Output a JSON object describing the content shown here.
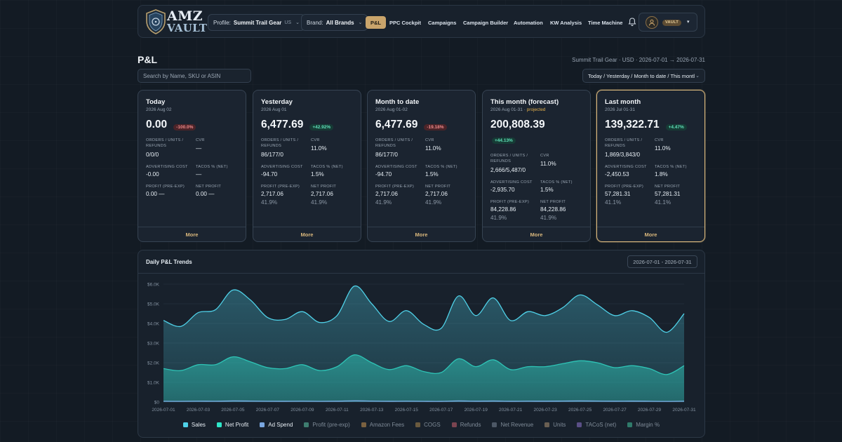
{
  "header": {
    "logo": {
      "line1": "AMZ",
      "line2": "VAULT"
    },
    "profile": {
      "label": "Profile:",
      "value": "Summit Trail Gear",
      "marketplace": "US"
    },
    "brand": {
      "label": "Brand:",
      "value": "All Brands"
    },
    "nav": [
      "P&L",
      "PPC Cockpit",
      "Campaigns",
      "Campaign Builder",
      "Automation",
      "KW Analysis",
      "Time Machine"
    ],
    "active_nav": "P&L",
    "user_badge": "VAULT"
  },
  "page": {
    "title": "P&L",
    "meta": "Summit Trail Gear · USD · 2026-07-01 → 2026-07-31",
    "search_placeholder": "Search by Name, SKU or ASIN",
    "range_select": "Today / Yesterday / Month to date / This montl"
  },
  "labels": {
    "orders": "ORDERS / UNITS / REFUNDS",
    "cvr": "CVR",
    "ad_cost": "ADVERTISING COST",
    "tacos": "TACOS % (NET)",
    "profit": "PROFIT (PRE-EXP)",
    "net_profit": "NET PROFIT",
    "more": "More"
  },
  "cards": [
    {
      "title": "Today",
      "date": "2026 Aug 02",
      "projected": "",
      "amount": "0.00",
      "delta": "-100.0%",
      "delta_dir": "neg",
      "orders": "0/0/0",
      "cvr": "—",
      "ad_cost": "-0.00",
      "tacos": "—",
      "profit": "0.00 —",
      "profit_pct": "",
      "net_profit": "0.00 —",
      "net_profit_pct": "",
      "highlight": false
    },
    {
      "title": "Yesterday",
      "date": "2026 Aug 01",
      "projected": "",
      "amount": "6,477.69",
      "delta": "+42.92%",
      "delta_dir": "pos",
      "orders": "86/177/0",
      "cvr": "11.0%",
      "ad_cost": "-94.70",
      "tacos": "1.5%",
      "profit": "2,717.06",
      "profit_pct": "41.9%",
      "net_profit": "2,717.06",
      "net_profit_pct": "41.9%",
      "highlight": false
    },
    {
      "title": "Month to date",
      "date": "2026 Aug 01-02",
      "projected": "",
      "amount": "6,477.69",
      "delta": "-19.18%",
      "delta_dir": "neg",
      "orders": "86/177/0",
      "cvr": "11.0%",
      "ad_cost": "-94.70",
      "tacos": "1.5%",
      "profit": "2,717.06",
      "profit_pct": "41.9%",
      "net_profit": "2,717.06",
      "net_profit_pct": "41.9%",
      "highlight": false
    },
    {
      "title": "This month (forecast)",
      "date": "2026 Aug 01-31 · ",
      "projected": "projected",
      "amount": "200,808.39",
      "delta": "+44.13%",
      "delta_dir": "pos",
      "orders": "2,666/5,487/0",
      "cvr": "11.0%",
      "ad_cost": "-2,935.70",
      "tacos": "1.5%",
      "profit": "84,228.86",
      "profit_pct": "41.9%",
      "net_profit": "84,228.86",
      "net_profit_pct": "41.9%",
      "highlight": false
    },
    {
      "title": "Last month",
      "date": "2026 Jul 01-31",
      "projected": "",
      "amount": "139,322.71",
      "delta": "+4.47%",
      "delta_dir": "pos",
      "orders": "1,869/3,843/0",
      "cvr": "11.0%",
      "ad_cost": "-2,450.53",
      "tacos": "1.8%",
      "profit": "57,281.31",
      "profit_pct": "41.1%",
      "net_profit": "57,281.31",
      "net_profit_pct": "41.1%",
      "highlight": true
    }
  ],
  "chart_panel": {
    "title": "Daily P&L Trends",
    "range": "2026-07-01 - 2026-07-31"
  },
  "chart_data": {
    "type": "area",
    "title": "Daily P&L Trends",
    "xlabel": "",
    "ylabel": "",
    "ylim": [
      0,
      6000
    ],
    "yticks": [
      "$0",
      "$1.0K",
      "$2.0K",
      "$3.0K",
      "$4.0K",
      "$5.0K",
      "$6.0K"
    ],
    "x": [
      "2026-07-01",
      "2026-07-02",
      "2026-07-03",
      "2026-07-04",
      "2026-07-05",
      "2026-07-06",
      "2026-07-07",
      "2026-07-08",
      "2026-07-09",
      "2026-07-10",
      "2026-07-11",
      "2026-07-12",
      "2026-07-13",
      "2026-07-14",
      "2026-07-15",
      "2026-07-16",
      "2026-07-17",
      "2026-07-18",
      "2026-07-19",
      "2026-07-20",
      "2026-07-21",
      "2026-07-22",
      "2026-07-23",
      "2026-07-24",
      "2026-07-25",
      "2026-07-26",
      "2026-07-27",
      "2026-07-28",
      "2026-07-29",
      "2026-07-30",
      "2026-07-31"
    ],
    "xtick_every": 2,
    "series": [
      {
        "name": "Sales",
        "color": "#4fd1e8",
        "values": [
          4150,
          3850,
          4550,
          4700,
          5700,
          5200,
          4300,
          4200,
          4600,
          4050,
          4400,
          5900,
          5000,
          4100,
          4650,
          3950,
          3750,
          5400,
          4400,
          5300,
          4150,
          4600,
          4400,
          4800,
          5450,
          4950,
          4400,
          4650,
          4300,
          3550,
          4500
        ]
      },
      {
        "name": "Net Profit",
        "color": "#2ec4b6",
        "values": [
          1700,
          1600,
          1900,
          1900,
          2300,
          2050,
          1750,
          1700,
          1900,
          1600,
          1800,
          2400,
          2000,
          1650,
          1850,
          1550,
          1500,
          2200,
          1800,
          2150,
          1650,
          1800,
          1800,
          1950,
          2100,
          2000,
          1750,
          1850,
          1700,
          1400,
          1850
        ]
      },
      {
        "name": "Ad Spend",
        "color": "#7aa7e0",
        "values": [
          40,
          35,
          45,
          40,
          55,
          50,
          40,
          38,
          45,
          36,
          42,
          60,
          50,
          38,
          44,
          35,
          33,
          55,
          42,
          52,
          38,
          44,
          42,
          48,
          55,
          48,
          42,
          46,
          40,
          32,
          44
        ]
      }
    ],
    "legend": [
      {
        "name": "Sales",
        "color": "#4fd1e8",
        "active": true
      },
      {
        "name": "Net Profit",
        "color": "#2ee6c8",
        "active": true
      },
      {
        "name": "Ad Spend",
        "color": "#7aa7e0",
        "active": true
      },
      {
        "name": "Profit (pre-exp)",
        "color": "#3e7d70",
        "active": false
      },
      {
        "name": "Amazon Fees",
        "color": "#7a6140",
        "active": false
      },
      {
        "name": "COGS",
        "color": "#6a5a3e",
        "active": false
      },
      {
        "name": "Refunds",
        "color": "#7a4450",
        "active": false
      },
      {
        "name": "Net Revenue",
        "color": "#4d5866",
        "active": false
      },
      {
        "name": "Units",
        "color": "#6a5f52",
        "active": false
      },
      {
        "name": "TACoS (net)",
        "color": "#5a4f86",
        "active": false
      },
      {
        "name": "Margin %",
        "color": "#2f7a6a",
        "active": false
      }
    ],
    "legend_placement": "bottom",
    "grid": true
  }
}
